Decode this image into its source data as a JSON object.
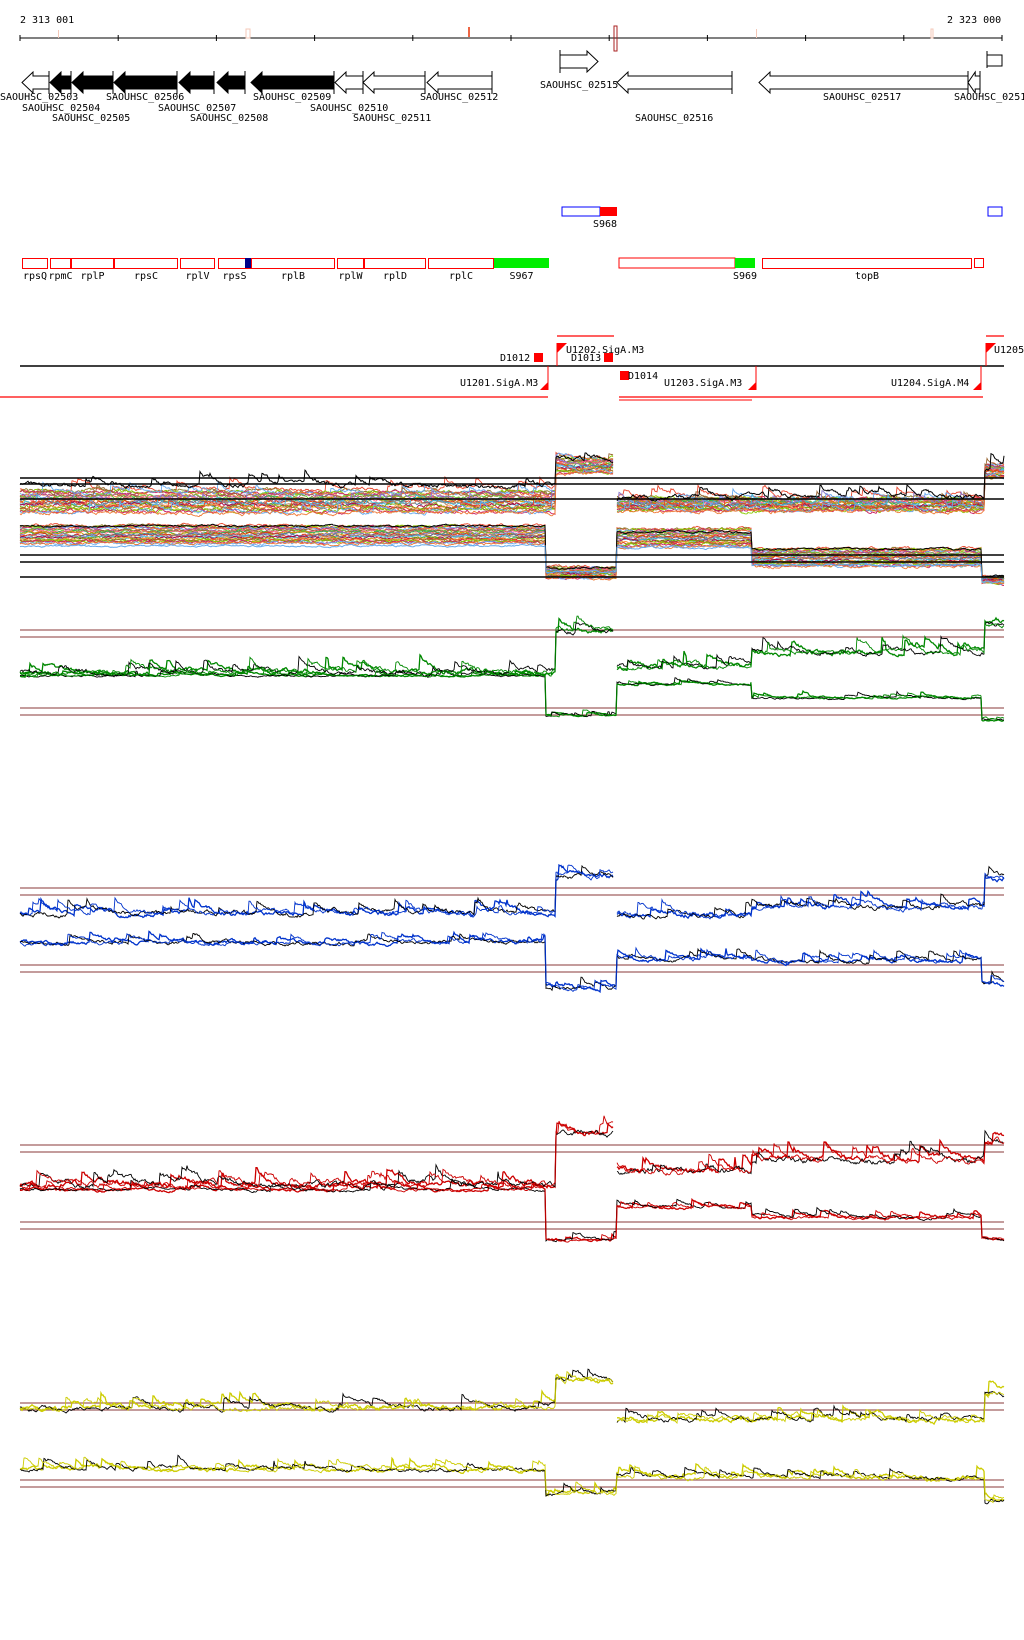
{
  "ruler": {
    "start_label": "2 313 001",
    "end_label": "2 323 000"
  },
  "genes": [
    {
      "name": "SAOUHSC_02503",
      "strand": "-",
      "filled": false
    },
    {
      "name": "SAOUHSC_02504",
      "strand": "-",
      "filled": true
    },
    {
      "name": "SAOUHSC_02505",
      "strand": "-",
      "filled": true
    },
    {
      "name": "SAOUHSC_02506",
      "strand": "-",
      "filled": true
    },
    {
      "name": "SAOUHSC_02507",
      "strand": "-",
      "filled": true
    },
    {
      "name": "SAOUHSC_02508",
      "strand": "-",
      "filled": true
    },
    {
      "name": "SAOUHSC_02509",
      "strand": "-",
      "filled": true
    },
    {
      "name": "SAOUHSC_02510",
      "strand": "-",
      "filled": false
    },
    {
      "name": "SAOUHSC_02511",
      "strand": "-",
      "filled": false
    },
    {
      "name": "SAOUHSC_02512",
      "strand": "-",
      "filled": false
    },
    {
      "name": "SAOUHSC_02515",
      "strand": "+",
      "filled": false
    },
    {
      "name": "SAOUHSC_02516",
      "strand": "-",
      "filled": false
    },
    {
      "name": "SAOUHSC_02517",
      "strand": "-",
      "filled": false
    },
    {
      "name": "SAOUHSC_0251",
      "strand": "-",
      "filled": false
    }
  ],
  "segments_top": [
    {
      "label": "S968"
    }
  ],
  "features": [
    {
      "label": "rpsQ"
    },
    {
      "label": "rpmC"
    },
    {
      "label": "rplP"
    },
    {
      "label": "rpsC"
    },
    {
      "label": "rplV"
    },
    {
      "label": "rpsS"
    },
    {
      "label": "rplB"
    },
    {
      "label": "rplW"
    },
    {
      "label": "rplD"
    },
    {
      "label": "rplC"
    },
    {
      "label": "S967"
    },
    {
      "label": "S969"
    },
    {
      "label": "topB"
    }
  ],
  "transcription_units": [
    {
      "label": "U1201.SigA.M3"
    },
    {
      "label": "U1202.SigA.M3"
    },
    {
      "label": "U1203.SigA.M3"
    },
    {
      "label": "U1204.SigA.M4"
    },
    {
      "label": "U1205"
    },
    {
      "label": "D1012"
    },
    {
      "label": "D1013"
    },
    {
      "label": "D1014"
    }
  ],
  "colors": {
    "feature_outline": "#ff0000",
    "feature_highlight": "#00ee00",
    "segment_blue": "#0000ff",
    "threshold_line": "#a06060",
    "track_green": "#008800",
    "track_blue": "#0033cc",
    "track_red": "#cc0000",
    "track_yellow": "#cccc00"
  },
  "tracks": [
    {
      "id": "multi",
      "accent": "multicolor"
    },
    {
      "id": "green",
      "accent": "#008800"
    },
    {
      "id": "blue",
      "accent": "#0033cc"
    },
    {
      "id": "red",
      "accent": "#cc0000"
    },
    {
      "id": "yellow",
      "accent": "#cccc00"
    }
  ]
}
